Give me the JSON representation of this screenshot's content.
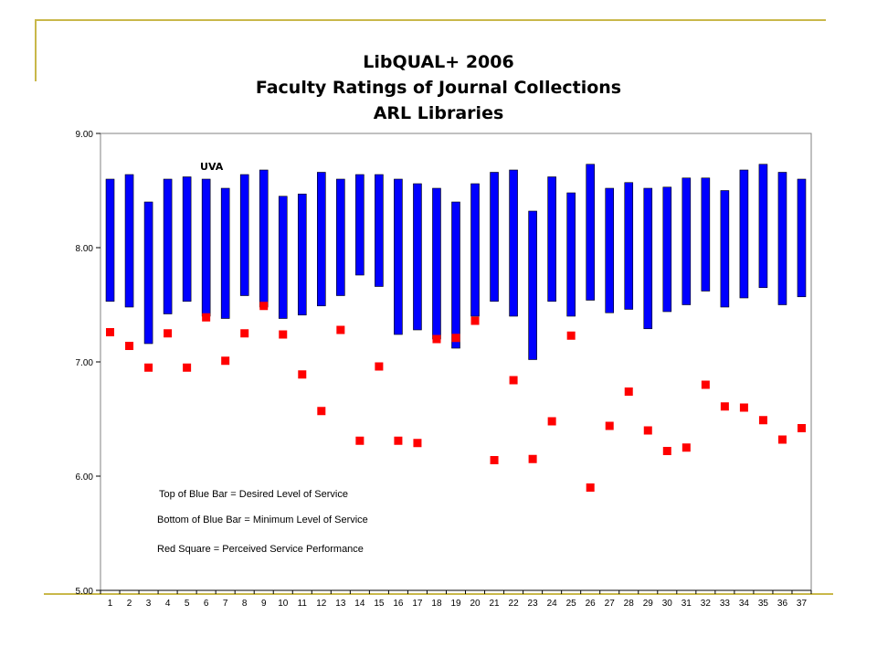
{
  "title": {
    "line1": "LibQUAL+ 2006",
    "line2": "Faculty Ratings of Journal Collections",
    "line3": "ARL Libraries"
  },
  "notes": {
    "top": "Top of Blue Bar = Desired Level of Service",
    "bottom": "Bottom of Blue Bar = Minimum Level of Service",
    "red": "Red Square = Perceived Service Performance"
  },
  "colors": {
    "bar": "#0000ff",
    "perceived": "#ff0000",
    "decoration": "#c9b84a"
  },
  "chart_data": {
    "type": "floating-bar-with-markers",
    "categories": [
      "1",
      "2",
      "3",
      "4",
      "5",
      "6",
      "7",
      "8",
      "9",
      "10",
      "11",
      "12",
      "13",
      "14",
      "15",
      "16",
      "17",
      "18",
      "19",
      "20",
      "21",
      "22",
      "23",
      "24",
      "25",
      "26",
      "27",
      "28",
      "29",
      "30",
      "31",
      "32",
      "33",
      "34",
      "35",
      "36",
      "37"
    ],
    "ylim": [
      5,
      9
    ],
    "yticks": [
      "5.00",
      "6.00",
      "7.00",
      "8.00",
      "9.00"
    ],
    "grid": false,
    "annotation": {
      "text": "UVA",
      "category": "6"
    },
    "series": [
      {
        "name": "Desired",
        "values": [
          8.6,
          8.64,
          8.4,
          8.6,
          8.62,
          8.6,
          8.52,
          8.64,
          8.68,
          8.45,
          8.47,
          8.66,
          8.6,
          8.64,
          8.64,
          8.6,
          8.56,
          8.52,
          8.4,
          8.56,
          8.66,
          8.68,
          8.32,
          8.62,
          8.48,
          8.73,
          8.52,
          8.57,
          8.52,
          8.53,
          8.61,
          8.61,
          8.5,
          8.68,
          8.73,
          8.66,
          8.6
        ]
      },
      {
        "name": "Minimum",
        "values": [
          7.53,
          7.48,
          7.16,
          7.42,
          7.53,
          7.4,
          7.38,
          7.58,
          7.48,
          7.38,
          7.41,
          7.49,
          7.58,
          7.76,
          7.66,
          7.24,
          7.28,
          7.2,
          7.12,
          7.4,
          7.53,
          7.4,
          7.02,
          7.53,
          7.4,
          7.54,
          7.43,
          7.46,
          7.29,
          7.44,
          7.5,
          7.62,
          7.48,
          7.56,
          7.65,
          7.5,
          7.57
        ]
      },
      {
        "name": "Perceived",
        "values": [
          7.26,
          7.14,
          6.95,
          7.25,
          6.95,
          7.39,
          7.01,
          7.25,
          7.49,
          7.24,
          6.89,
          6.57,
          7.28,
          6.31,
          6.96,
          6.31,
          6.29,
          7.2,
          7.21,
          7.36,
          6.14,
          6.84,
          6.15,
          6.48,
          7.23,
          5.9,
          6.44,
          6.74,
          6.4,
          6.22,
          6.25,
          6.8,
          6.61,
          6.6,
          6.49,
          6.32,
          6.42
        ]
      }
    ]
  }
}
